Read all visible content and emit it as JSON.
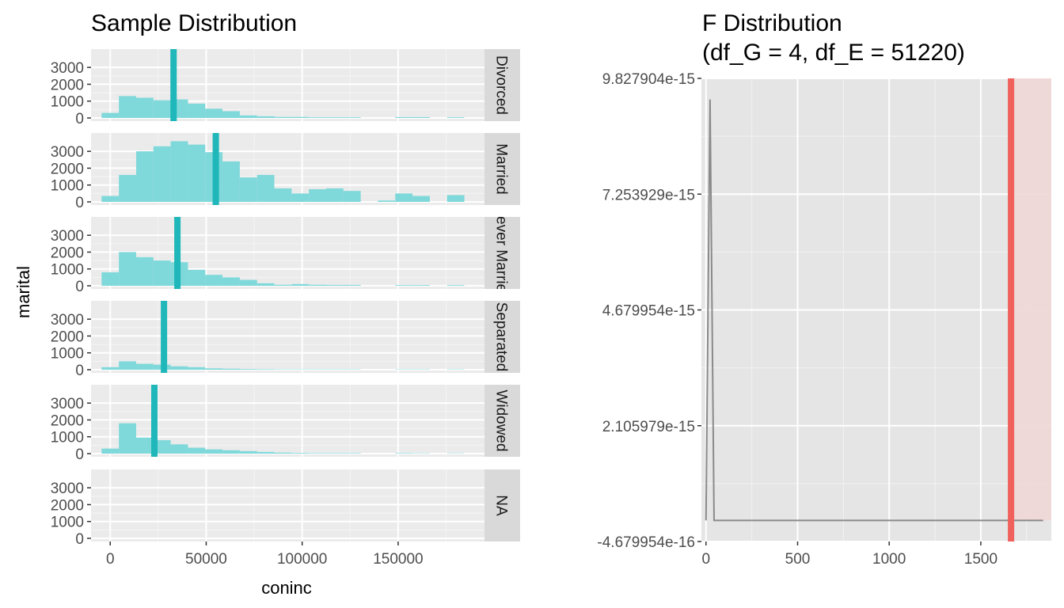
{
  "chart_data": [
    {
      "type": "bar",
      "title": "Sample Distribution",
      "xlabel": "coninc",
      "ylabel": "marital",
      "x_ticks": [
        0,
        50000,
        100000,
        150000
      ],
      "x_tick_labels": [
        "0",
        "50000",
        "100000",
        "150000"
      ],
      "xlim": [
        -10000,
        195000
      ],
      "y_ticks": [
        0,
        1000,
        2000,
        3000
      ],
      "y_tick_labels": [
        "0",
        "1000",
        "2000",
        "3000"
      ],
      "ylim": [
        0,
        3900
      ],
      "bin_width": 9000,
      "bin_starts": [
        -4500,
        4500,
        13500,
        22500,
        31500,
        40500,
        49500,
        58500,
        67500,
        76500,
        85500,
        94500,
        103500,
        112500,
        121500,
        130500,
        139500,
        148500,
        157500,
        166500,
        175500
      ],
      "bar_color": "#7fd8da",
      "line_color": "#1fb7b9",
      "panels": [
        {
          "label": "Divorced",
          "values": [
            300,
            1300,
            1200,
            1050,
            1100,
            850,
            550,
            400,
            150,
            100,
            60,
            60,
            40,
            40,
            40,
            0,
            0,
            50,
            50,
            0,
            40
          ],
          "mean": 33000
        },
        {
          "label": "Married",
          "values": [
            350,
            1600,
            3000,
            3300,
            3600,
            3400,
            2950,
            2400,
            1450,
            1600,
            800,
            500,
            750,
            800,
            650,
            0,
            80,
            500,
            350,
            0,
            400
          ],
          "mean": 55000
        },
        {
          "label": "Never Married",
          "values": [
            800,
            2000,
            1700,
            1500,
            1400,
            950,
            650,
            500,
            350,
            150,
            60,
            100,
            60,
            50,
            50,
            0,
            0,
            40,
            40,
            0,
            40
          ],
          "mean": 35000
        },
        {
          "label": "Separated",
          "values": [
            150,
            500,
            350,
            300,
            200,
            150,
            80,
            60,
            40,
            30,
            20,
            20,
            20,
            20,
            20,
            0,
            0,
            20,
            20,
            0,
            20
          ],
          "mean": 28000
        },
        {
          "label": "Widowed",
          "values": [
            300,
            1800,
            950,
            800,
            550,
            350,
            250,
            200,
            150,
            100,
            60,
            40,
            30,
            30,
            30,
            0,
            0,
            30,
            20,
            0,
            20
          ],
          "mean": 23000
        },
        {
          "label": "NA",
          "values": [],
          "mean": null
        }
      ]
    },
    {
      "type": "line",
      "title": "F Distribution\n(df_G = 4, df_E = 51220)",
      "title_lines": [
        "F Distribution",
        "(df_G = 4, df_E = 51220)"
      ],
      "xlabel": "",
      "ylabel": "",
      "x_ticks": [
        0,
        500,
        1000,
        1500
      ],
      "x_tick_labels": [
        "0",
        "500",
        "1000",
        "1500"
      ],
      "xlim": [
        -25,
        1885
      ],
      "y_ticks": [
        -4.679954e-16,
        2.105979e-15,
        4.679954e-15,
        7.253929e-15,
        9.827904e-15
      ],
      "y_tick_labels": [
        "-4.679954e-16",
        "2.105979e-15",
        "4.679954e-15",
        "7.253929e-15",
        "9.827904e-15"
      ],
      "ylim": [
        -4.679954e-16,
        9.827904e-15
      ],
      "x": [
        0,
        22,
        44,
        1840
      ],
      "y": [
        0,
        9.36e-15,
        0,
        0
      ],
      "line_color": "#8a8a8a",
      "observed_f": 1665,
      "observed_color": "#f0605c",
      "shade_color": "#f0d7d6"
    }
  ]
}
